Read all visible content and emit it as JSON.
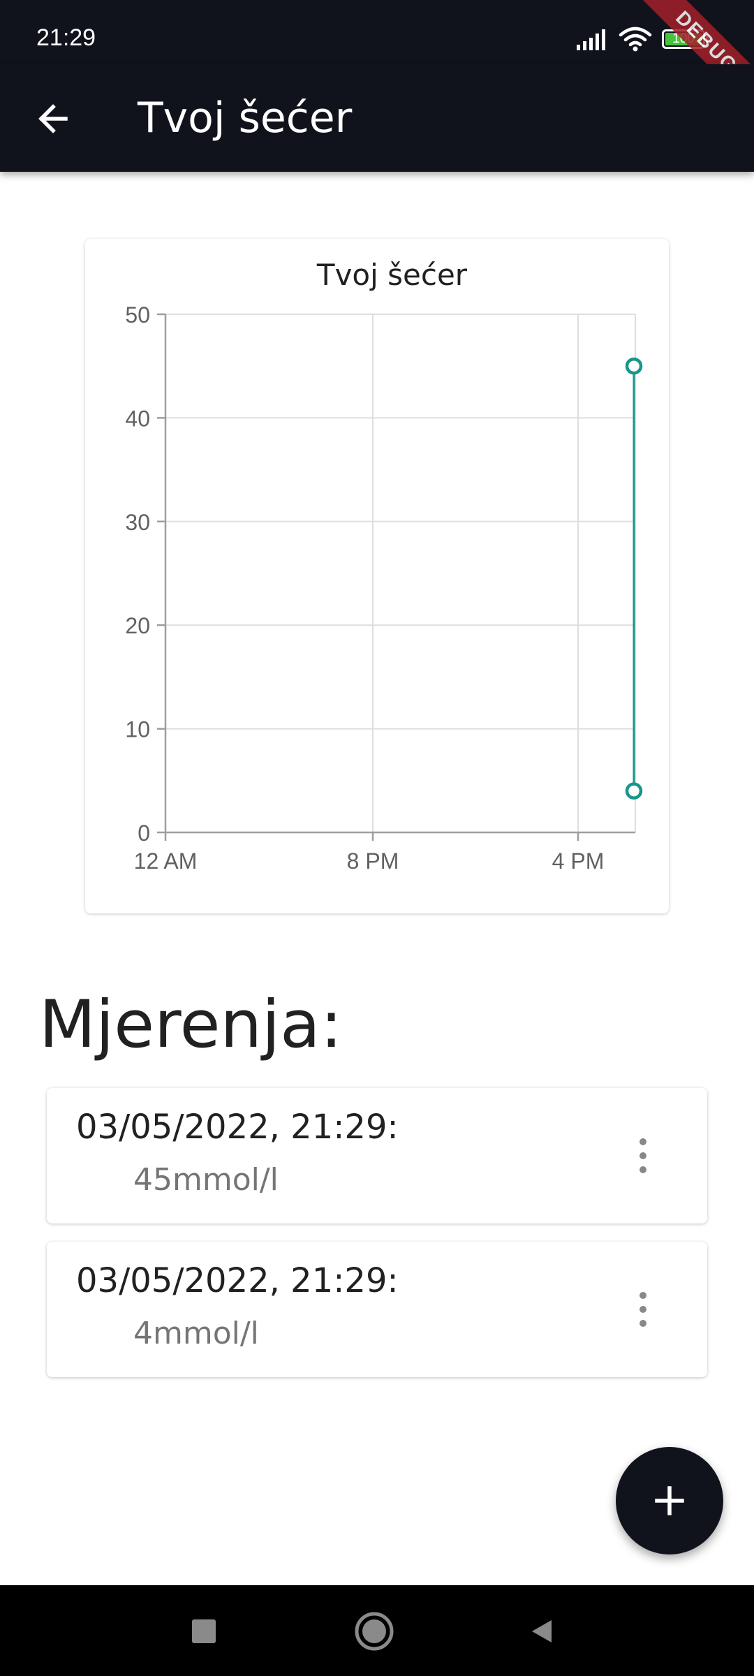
{
  "status_bar": {
    "time": "21:29",
    "battery_level": "100",
    "battery_fraction": 1.0,
    "icons": [
      "signal-icon",
      "wifi-icon",
      "battery-icon"
    ]
  },
  "debug_banner": "DEBUG",
  "app_bar": {
    "title": "Tvoj šećer",
    "back_icon": "arrow-left-icon"
  },
  "chart_data": {
    "type": "line",
    "title": "Tvoj šećer",
    "xlabel": "",
    "ylabel": "",
    "ylim": [
      0,
      50
    ],
    "y_ticks": [
      "0",
      "10",
      "20",
      "30",
      "40",
      "50"
    ],
    "x_tick_labels": [
      "12 AM",
      "8 PM",
      "4 PM"
    ],
    "series": [
      {
        "values": [
          45,
          4
        ],
        "x_labels": [
          "03/05/2022, 21:29",
          "03/05/2022, 21:29"
        ],
        "color": "#17968a"
      }
    ],
    "grid": true,
    "legend": "none"
  },
  "measurements": {
    "title": "Mjerenja:",
    "items": [
      {
        "date": "03/05/2022, 21:29:",
        "value": "45mmol/l"
      },
      {
        "date": "03/05/2022, 21:29:",
        "value": "4mmol/l"
      }
    ]
  },
  "fab": {
    "icon": "plus-icon"
  },
  "nav_bar": {
    "icons": [
      "square-icon",
      "circle-home-icon",
      "triangle-back-icon"
    ]
  },
  "colors": {
    "app_bar": "#11131c",
    "accent": "#17968a",
    "text_primary": "#212121",
    "text_secondary": "#757575"
  }
}
